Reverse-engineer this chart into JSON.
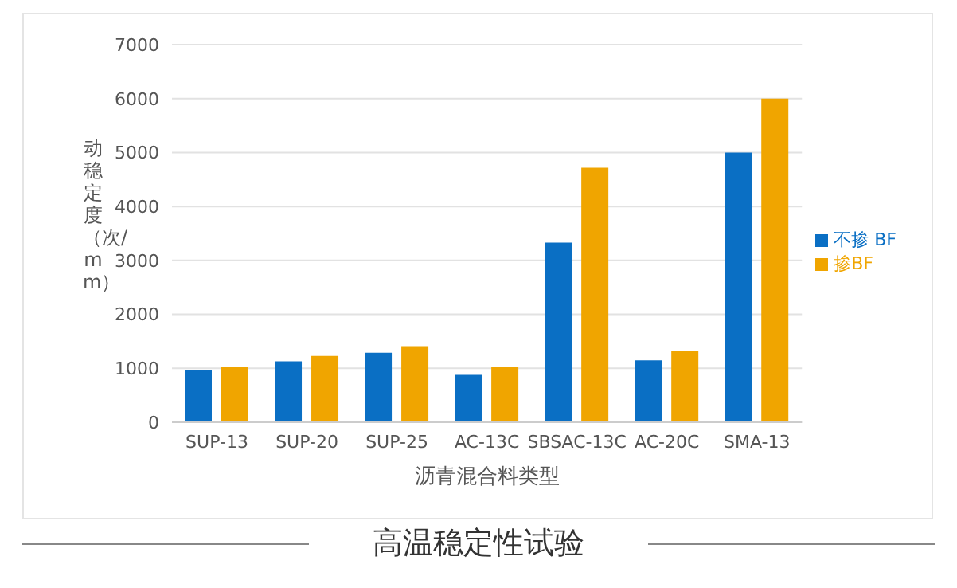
{
  "chart_data": {
    "type": "bar",
    "title": "高温稳定性试验",
    "xlabel": "沥青混合料类型",
    "ylabel": "动稳定度（次/mm）",
    "categories": [
      "SUP-13",
      "SUP-20",
      "SUP-25",
      "AC-13C",
      "SBSAC-13C",
      "AC-20C",
      "SMA-13"
    ],
    "series": [
      {
        "name": "不掺 BF",
        "color": "#0a6fc4",
        "values": [
          970,
          1130,
          1290,
          880,
          3330,
          1150,
          5000
        ]
      },
      {
        "name": "掺BF",
        "color": "#f0a500",
        "values": [
          1030,
          1230,
          1410,
          1030,
          4720,
          1330,
          6000
        ]
      }
    ],
    "ylim": [
      0,
      7000
    ],
    "yticks": [
      0,
      1000,
      2000,
      3000,
      4000,
      5000,
      6000,
      7000
    ],
    "grid": "y",
    "legend": "right"
  }
}
